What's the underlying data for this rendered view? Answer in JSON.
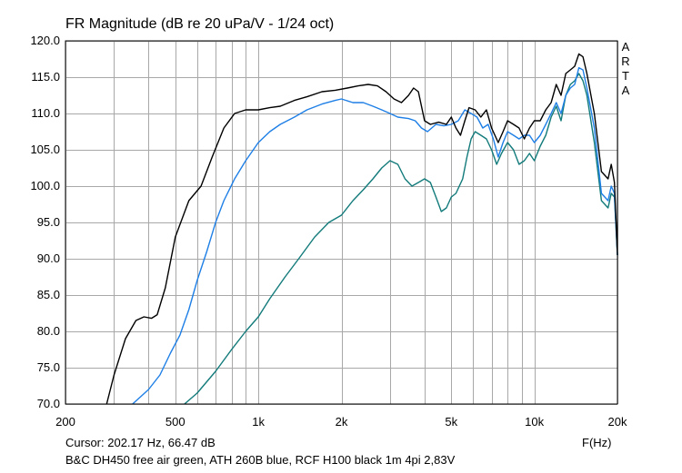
{
  "chart_data": {
    "type": "line",
    "title": "FR Magnitude (dB re 20 uPa/V - 1/24 oct)",
    "side_text": [
      "A",
      "R",
      "T",
      "A"
    ],
    "xlabel": "F(Hz)",
    "ylabel": "",
    "x_scale": "log",
    "xlim": [
      200,
      20000
    ],
    "ylim": [
      70,
      120
    ],
    "x_ticks": [
      200,
      500,
      1000,
      2000,
      5000,
      10000,
      20000
    ],
    "x_tick_labels": [
      "200",
      "500",
      "1k",
      "2k",
      "5k",
      "10k",
      "20k"
    ],
    "y_ticks": [
      70,
      75,
      80,
      85,
      90,
      95,
      100,
      105,
      110,
      115,
      120
    ],
    "y_tick_labels": [
      "70.0",
      "75.0",
      "80.0",
      "85.0",
      "90.0",
      "95.0",
      "100.0",
      "105.0",
      "110.0",
      "115.0",
      "120.0"
    ],
    "grid": true,
    "cursor_text": "Cursor: 202.17 Hz, 66.47 dB",
    "legend_text": "B&C DH450 free air green, ATH 260B blue, RCF H100 black 1m 4pi 2,83V",
    "series": [
      {
        "color": "#000000",
        "points": [
          [
            282,
            70
          ],
          [
            300,
            74
          ],
          [
            330,
            79
          ],
          [
            360,
            81.5
          ],
          [
            385,
            82
          ],
          [
            410,
            81.8
          ],
          [
            430,
            82.3
          ],
          [
            460,
            86
          ],
          [
            500,
            93
          ],
          [
            560,
            98
          ],
          [
            620,
            100
          ],
          [
            680,
            104
          ],
          [
            750,
            108
          ],
          [
            820,
            110
          ],
          [
            900,
            110.5
          ],
          [
            1000,
            110.5
          ],
          [
            1100,
            110.8
          ],
          [
            1200,
            111
          ],
          [
            1350,
            111.8
          ],
          [
            1500,
            112.3
          ],
          [
            1700,
            113
          ],
          [
            1900,
            113.2
          ],
          [
            2100,
            113.5
          ],
          [
            2300,
            113.8
          ],
          [
            2500,
            114
          ],
          [
            2700,
            113.8
          ],
          [
            2900,
            113
          ],
          [
            3100,
            112
          ],
          [
            3300,
            111.5
          ],
          [
            3500,
            112.5
          ],
          [
            3650,
            113.5
          ],
          [
            3800,
            113
          ],
          [
            4000,
            109
          ],
          [
            4200,
            108.5
          ],
          [
            4500,
            108.8
          ],
          [
            4800,
            108.5
          ],
          [
            5000,
            109.5
          ],
          [
            5200,
            108
          ],
          [
            5400,
            107
          ],
          [
            5600,
            109
          ],
          [
            5800,
            110.8
          ],
          [
            6100,
            110.5
          ],
          [
            6400,
            109.5
          ],
          [
            6700,
            110.5
          ],
          [
            7000,
            108
          ],
          [
            7400,
            106
          ],
          [
            7700,
            107.5
          ],
          [
            8000,
            109
          ],
          [
            8400,
            108.5
          ],
          [
            8800,
            108
          ],
          [
            9200,
            106.5
          ],
          [
            9600,
            108
          ],
          [
            10000,
            109
          ],
          [
            10500,
            109
          ],
          [
            11000,
            110.5
          ],
          [
            11500,
            111.5
          ],
          [
            12000,
            114
          ],
          [
            12500,
            112.5
          ],
          [
            13000,
            115.5
          ],
          [
            13500,
            116
          ],
          [
            14000,
            116.5
          ],
          [
            14500,
            118.2
          ],
          [
            15000,
            117.8
          ],
          [
            15500,
            115.5
          ],
          [
            16500,
            110
          ],
          [
            17500,
            102
          ],
          [
            18500,
            101
          ],
          [
            19000,
            103
          ],
          [
            19500,
            100.5
          ],
          [
            20000,
            90.5
          ]
        ]
      },
      {
        "color": "#1e7fe6",
        "points": [
          [
            350,
            70
          ],
          [
            400,
            72
          ],
          [
            440,
            74
          ],
          [
            480,
            77
          ],
          [
            520,
            79.5
          ],
          [
            560,
            83
          ],
          [
            600,
            87
          ],
          [
            650,
            91
          ],
          [
            700,
            95
          ],
          [
            750,
            98
          ],
          [
            820,
            101
          ],
          [
            900,
            103.5
          ],
          [
            1000,
            106
          ],
          [
            1100,
            107.5
          ],
          [
            1200,
            108.5
          ],
          [
            1350,
            109.5
          ],
          [
            1500,
            110.5
          ],
          [
            1700,
            111.3
          ],
          [
            1900,
            111.8
          ],
          [
            2000,
            112
          ],
          [
            2200,
            111.5
          ],
          [
            2400,
            111.5
          ],
          [
            2600,
            111
          ],
          [
            2800,
            110.5
          ],
          [
            3000,
            110
          ],
          [
            3200,
            109.5
          ],
          [
            3500,
            109.3
          ],
          [
            3700,
            109
          ],
          [
            3900,
            108
          ],
          [
            4100,
            107.5
          ],
          [
            4400,
            108.5
          ],
          [
            4700,
            108.3
          ],
          [
            5000,
            108.5
          ],
          [
            5300,
            109
          ],
          [
            5600,
            110.5
          ],
          [
            5900,
            110
          ],
          [
            6200,
            109.5
          ],
          [
            6500,
            108
          ],
          [
            6800,
            108.5
          ],
          [
            7100,
            106.5
          ],
          [
            7400,
            104
          ],
          [
            7700,
            106
          ],
          [
            8000,
            107.5
          ],
          [
            8400,
            107
          ],
          [
            8800,
            106.5
          ],
          [
            9200,
            107
          ],
          [
            9600,
            107
          ],
          [
            10000,
            106
          ],
          [
            10500,
            107
          ],
          [
            11000,
            108.5
          ],
          [
            11500,
            110
          ],
          [
            12000,
            111.5
          ],
          [
            12500,
            110
          ],
          [
            13000,
            112.5
          ],
          [
            13500,
            113.5
          ],
          [
            14000,
            114
          ],
          [
            14500,
            116.3
          ],
          [
            15000,
            116
          ],
          [
            15500,
            113.5
          ],
          [
            16500,
            108
          ],
          [
            17500,
            99
          ],
          [
            18500,
            98
          ],
          [
            19000,
            100
          ],
          [
            19500,
            99
          ],
          [
            20000,
            90.5
          ]
        ]
      },
      {
        "color": "#127a7a",
        "points": [
          [
            540,
            70
          ],
          [
            600,
            71.5
          ],
          [
            700,
            74.5
          ],
          [
            800,
            77.5
          ],
          [
            900,
            80
          ],
          [
            1000,
            82
          ],
          [
            1100,
            84.5
          ],
          [
            1250,
            87.5
          ],
          [
            1400,
            90
          ],
          [
            1600,
            93
          ],
          [
            1800,
            95
          ],
          [
            2000,
            96
          ],
          [
            2200,
            98
          ],
          [
            2400,
            99.5
          ],
          [
            2600,
            101
          ],
          [
            2800,
            102.5
          ],
          [
            3000,
            103.5
          ],
          [
            3200,
            103
          ],
          [
            3400,
            101
          ],
          [
            3600,
            100
          ],
          [
            3800,
            100.5
          ],
          [
            4000,
            101
          ],
          [
            4200,
            100.5
          ],
          [
            4400,
            98.5
          ],
          [
            4600,
            96.5
          ],
          [
            4800,
            97
          ],
          [
            5000,
            98.5
          ],
          [
            5200,
            99
          ],
          [
            5500,
            101
          ],
          [
            5700,
            104
          ],
          [
            5900,
            106.5
          ],
          [
            6100,
            107.5
          ],
          [
            6400,
            107
          ],
          [
            6700,
            106.5
          ],
          [
            7000,
            105
          ],
          [
            7300,
            103
          ],
          [
            7600,
            104.5
          ],
          [
            8000,
            106
          ],
          [
            8400,
            105
          ],
          [
            8800,
            103
          ],
          [
            9200,
            103.5
          ],
          [
            9600,
            104.5
          ],
          [
            10000,
            103.5
          ],
          [
            10500,
            105.5
          ],
          [
            11000,
            107
          ],
          [
            11500,
            109.5
          ],
          [
            12000,
            111
          ],
          [
            12500,
            109
          ],
          [
            13000,
            112.5
          ],
          [
            13500,
            114
          ],
          [
            14000,
            114.5
          ],
          [
            14500,
            115.5
          ],
          [
            15000,
            114.5
          ],
          [
            15500,
            112.5
          ],
          [
            16500,
            106
          ],
          [
            17500,
            98
          ],
          [
            18500,
            97
          ],
          [
            19000,
            99
          ],
          [
            19500,
            98.5
          ],
          [
            20000,
            90.5
          ]
        ]
      }
    ]
  }
}
